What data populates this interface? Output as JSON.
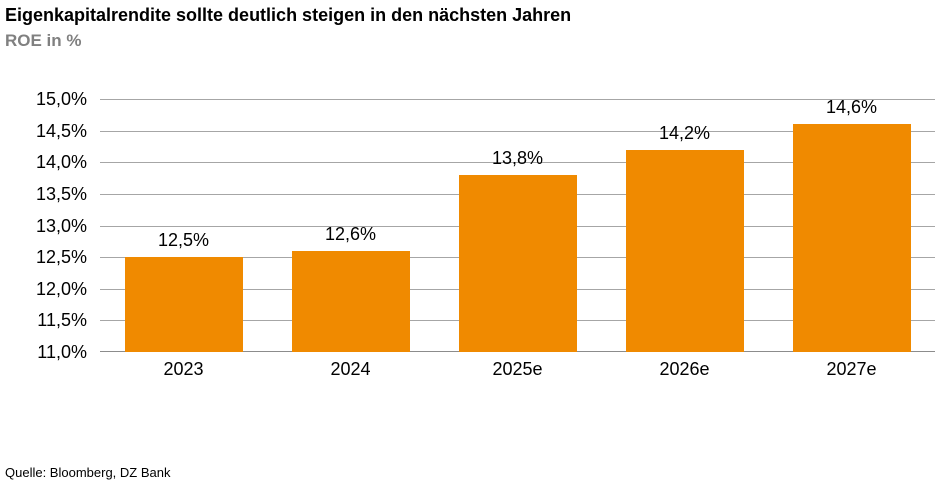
{
  "chart_data": {
    "type": "bar",
    "title": "Eigenkapitalrendite sollte deutlich steigen in den nächsten Jahren",
    "subtitle": "ROE in %",
    "categories": [
      "2023",
      "2024",
      "2025e",
      "2026e",
      "2027e"
    ],
    "values": [
      12.5,
      12.6,
      13.8,
      14.2,
      14.6
    ],
    "value_labels": [
      "12,5%",
      "12,6%",
      "13,8%",
      "14,2%",
      "14,6%"
    ],
    "ylim": [
      11.0,
      15.0
    ],
    "ytick_step": 0.5,
    "yticks": [
      {
        "value": 15.0,
        "label": "15,0%"
      },
      {
        "value": 14.5,
        "label": "14,5%"
      },
      {
        "value": 14.0,
        "label": "14,0%"
      },
      {
        "value": 13.5,
        "label": "13,5%"
      },
      {
        "value": 13.0,
        "label": "13,0%"
      },
      {
        "value": 12.5,
        "label": "12,5%"
      },
      {
        "value": 12.0,
        "label": "12,0%"
      },
      {
        "value": 11.5,
        "label": "11,5%"
      },
      {
        "value": 11.0,
        "label": "11,0%"
      }
    ],
    "grid": "horizontal",
    "legend": "none",
    "xlabel": "",
    "ylabel": "ROE in %",
    "colors": {
      "bar": "#F08A00",
      "gridline": "#A6A6A6",
      "axis": "#8C8C8C",
      "title": "#000000",
      "subtitle": "#808080",
      "label": "#000000"
    },
    "source": "Quelle: Bloomberg, DZ Bank"
  }
}
